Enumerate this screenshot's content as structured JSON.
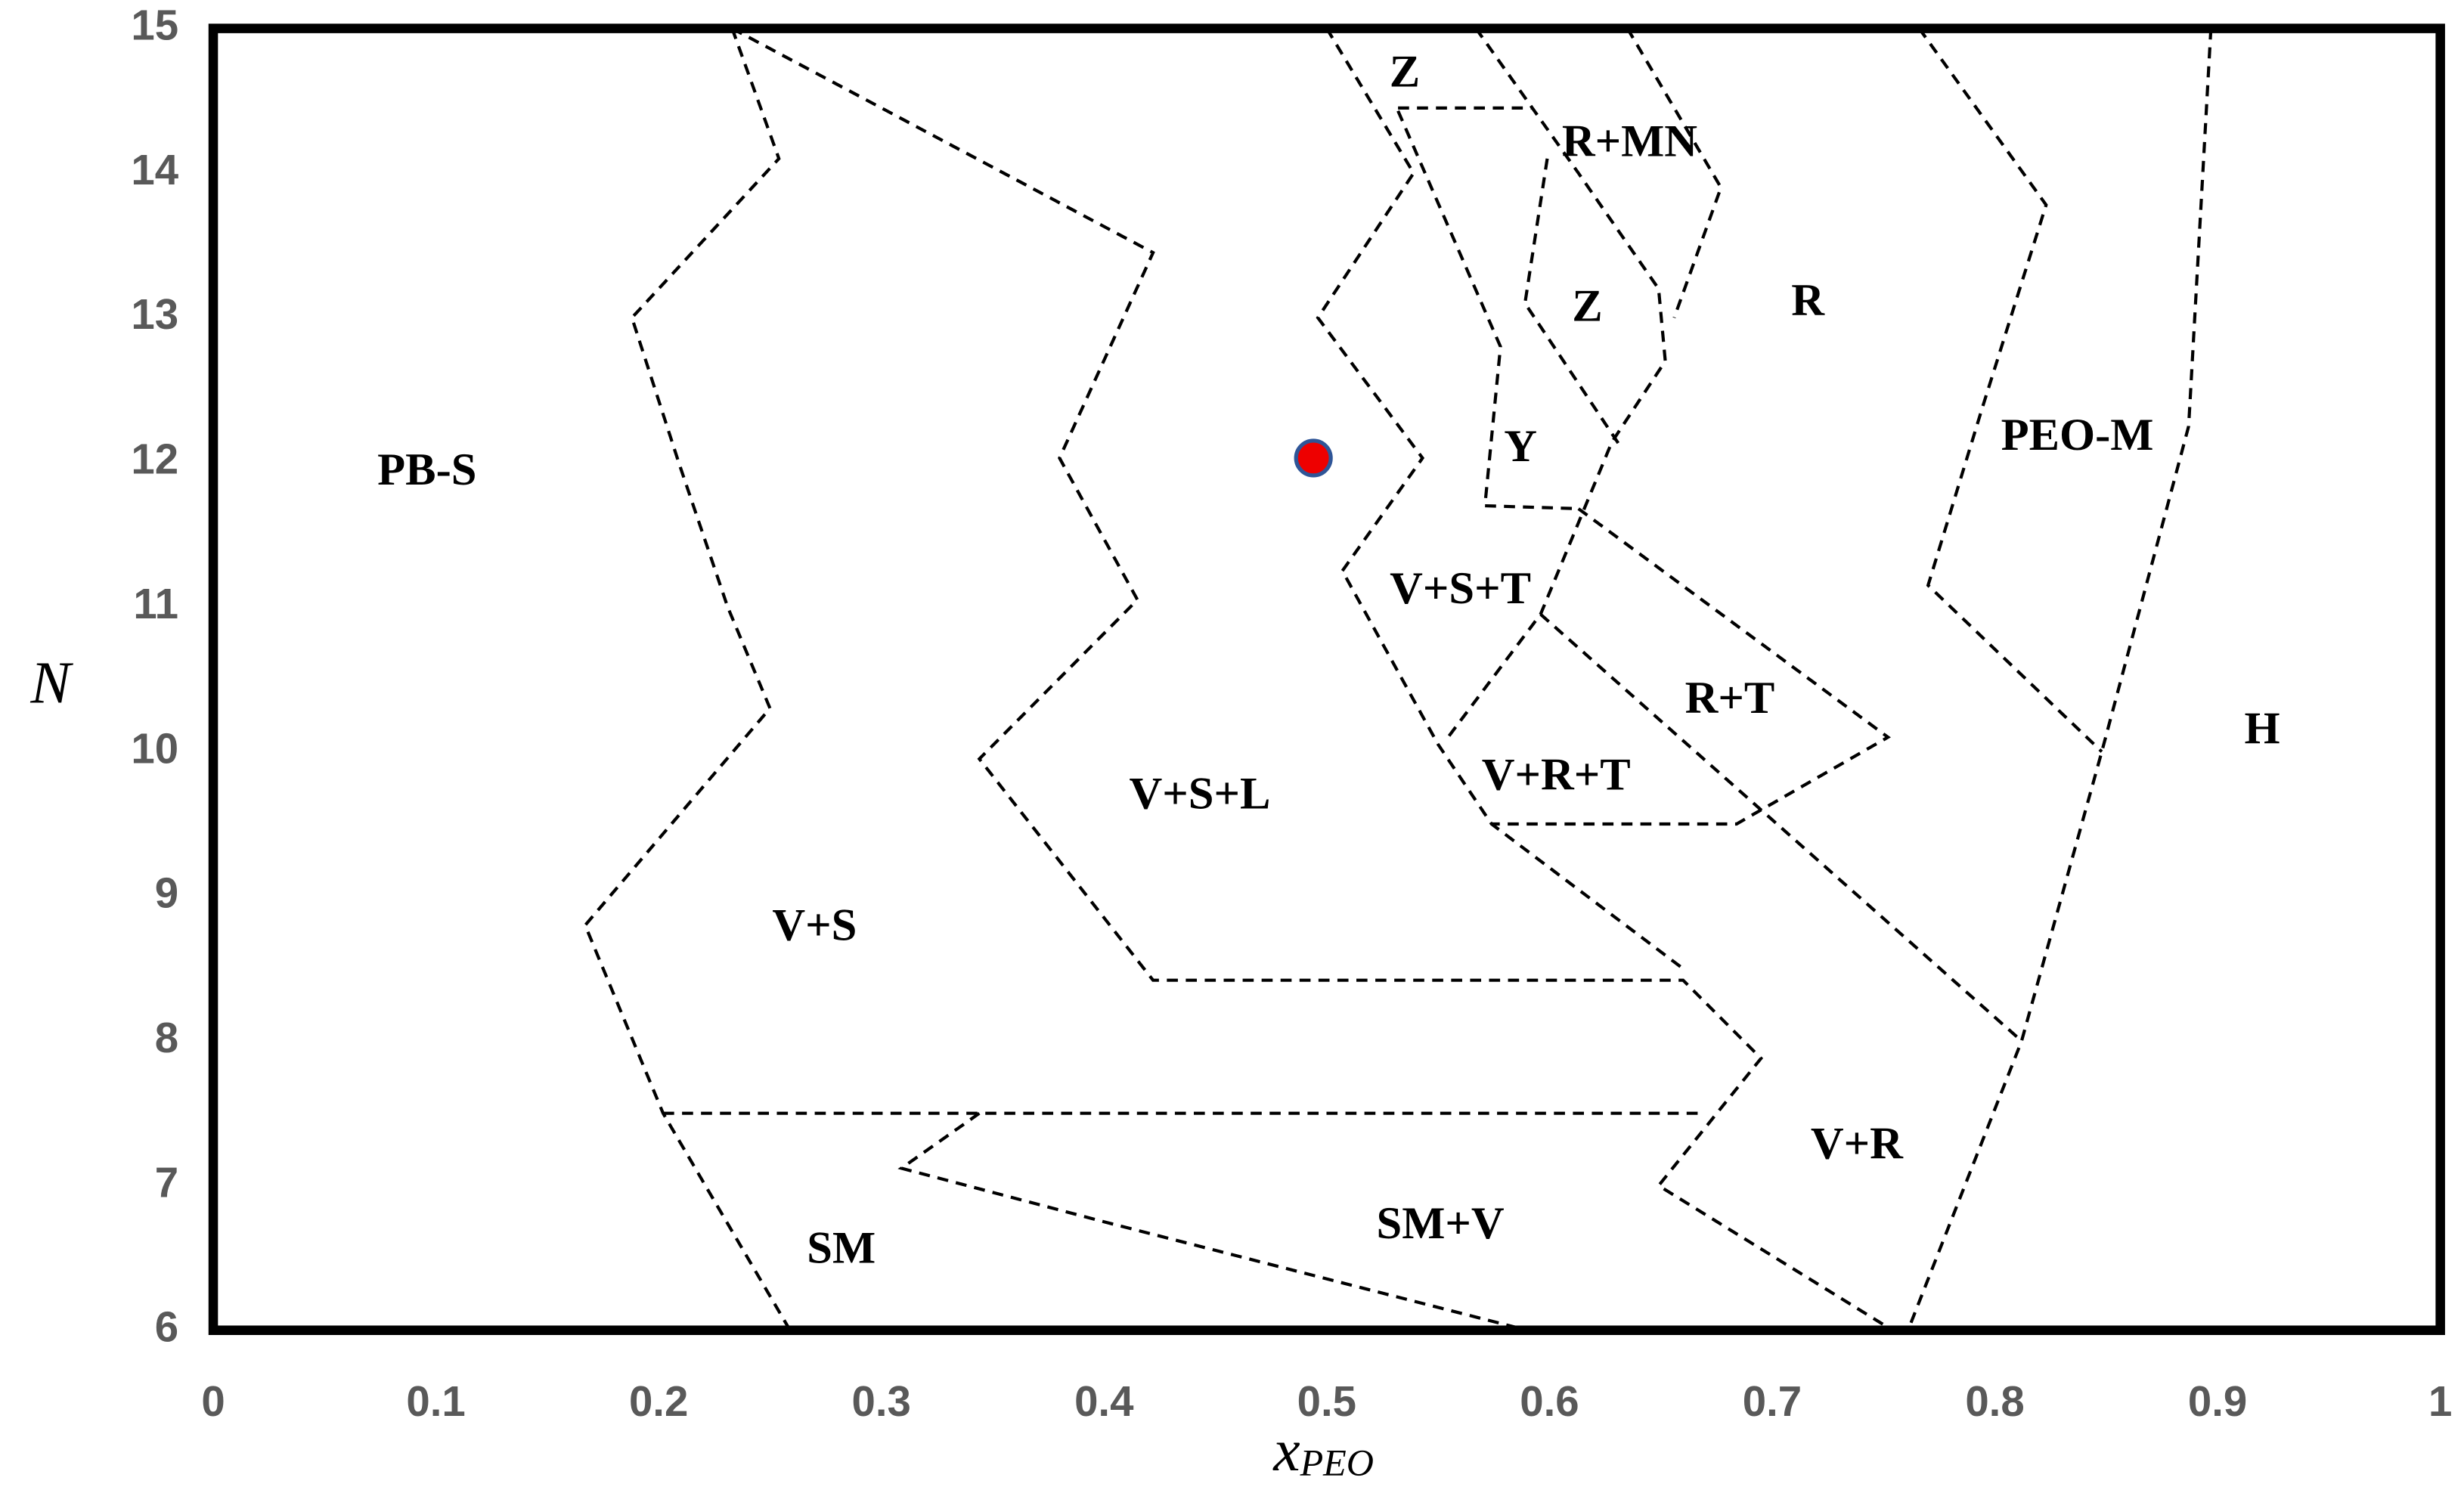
{
  "chart_data": {
    "type": "scatter",
    "x_label": "x",
    "x_label_subscript": "PEO",
    "y_label": "N",
    "xlim": [
      0,
      1
    ],
    "ylim": [
      6,
      15
    ],
    "xticks": [
      0,
      0.1,
      0.2,
      0.3,
      0.4,
      0.5,
      0.6,
      0.7,
      0.8,
      0.9,
      1
    ],
    "yticks": [
      6,
      7,
      8,
      9,
      10,
      11,
      12,
      13,
      14,
      15
    ],
    "grid": false,
    "series": [
      {
        "x": [
          0.494
        ],
        "values": [
          12.03
        ],
        "color": "#ee0000"
      }
    ],
    "boundaries": [
      {
        "x": [
          0.233,
          0.254,
          0.188,
          0.209,
          0.231,
          0.25,
          0.167,
          0.202,
          0.259
        ],
        "values": [
          15,
          14.1,
          13.0,
          12.0,
          11.0,
          10.3,
          8.8,
          7.5,
          6.0
        ]
      },
      {
        "x": [
          0.233,
          0.422,
          0.38,
          0.415,
          0.344,
          0.422,
          0.66,
          0.695,
          0.649,
          0.752
        ],
        "values": [
          15,
          13.45,
          12.03,
          11.05,
          9.95,
          8.42,
          8.42,
          7.88,
          7.0,
          6.02
        ]
      },
      {
        "x": [
          0.202,
          0.67
        ],
        "values": [
          7.5,
          7.5
        ]
      },
      {
        "x": [
          0.344,
          0.309,
          0.4,
          0.585
        ],
        "values": [
          7.5,
          7.12,
          6.75,
          6.02
        ]
      },
      {
        "x": [
          0.5,
          0.539,
          0.496,
          0.543,
          0.507,
          0.55,
          0.574,
          0.66
        ],
        "values": [
          15,
          14.0,
          13.0,
          12.03,
          11.25,
          10.05,
          9.5,
          8.5
        ]
      },
      {
        "x": [
          0.532,
          0.578,
          0.571,
          0.613
        ],
        "values": [
          14.43,
          12.8,
          11.7,
          11.68
        ]
      },
      {
        "x": [
          0.532,
          0.592
        ],
        "values": [
          14.45,
          14.45
        ]
      },
      {
        "x": [
          0.567,
          0.613,
          0.649,
          0.652,
          0.628,
          0.596,
          0.553
        ],
        "values": [
          15,
          14.0,
          13.2,
          12.7,
          12.14,
          10.95,
          10.07
        ]
      },
      {
        "x": [
          0.599,
          0.589,
          0.631
        ],
        "values": [
          14.1,
          13.1,
          12.13
        ]
      },
      {
        "x": [
          0.635,
          0.677,
          0.656
        ],
        "values": [
          15,
          13.9,
          13.0
        ]
      },
      {
        "x": [
          0.613,
          0.752,
          0.684,
          0.574
        ],
        "values": [
          11.68,
          10.1,
          9.5,
          9.5
        ]
      },
      {
        "x": [
          0.596,
          0.812
        ],
        "values": [
          10.95,
          8.0
        ]
      },
      {
        "x": [
          0.766,
          0.823,
          0.794,
          0.77,
          0.848
        ],
        "values": [
          15,
          13.78,
          12.36,
          11.15,
          10.0
        ]
      },
      {
        "x": [
          0.897,
          0.887,
          0.848,
          0.812,
          0.761
        ],
        "values": [
          15,
          12.25,
          10.0,
          8.0,
          6.0
        ]
      }
    ],
    "regions": [
      {
        "label": "PB-S",
        "x": 0.096,
        "y": 11.92
      },
      {
        "label": "V+S",
        "x": 0.27,
        "y": 8.77
      },
      {
        "label": "V+S+L",
        "x": 0.443,
        "y": 9.68
      },
      {
        "label": "SM",
        "x": 0.282,
        "y": 6.54
      },
      {
        "label": "SM+V",
        "x": 0.551,
        "y": 6.71
      },
      {
        "label": "V+R",
        "x": 0.738,
        "y": 7.26
      },
      {
        "label": "V+R+T",
        "x": 0.603,
        "y": 9.81
      },
      {
        "label": "R+T",
        "x": 0.681,
        "y": 10.34
      },
      {
        "label": "V+S+T",
        "x": 0.56,
        "y": 11.1
      },
      {
        "label": "Y",
        "x": 0.587,
        "y": 12.08
      },
      {
        "label": "Z",
        "x": 0.617,
        "y": 13.05
      },
      {
        "label": "Z",
        "x": 0.535,
        "y": 14.67
      },
      {
        "label": "R+MN",
        "x": 0.636,
        "y": 14.19
      },
      {
        "label": "R",
        "x": 0.716,
        "y": 13.09
      },
      {
        "label": "PEO-M",
        "x": 0.837,
        "y": 12.16
      },
      {
        "label": "H",
        "x": 0.92,
        "y": 10.13
      }
    ]
  }
}
